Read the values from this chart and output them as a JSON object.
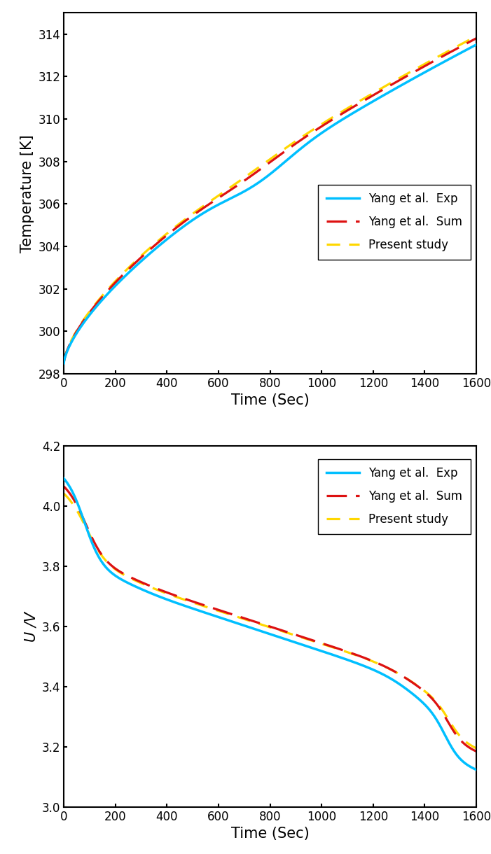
{
  "fig_width": 7.01,
  "fig_height": 12.2,
  "dpi": 100,
  "plot1": {
    "xlabel": "Time (Sec)",
    "ylabel": "Temperature [K]",
    "xlim": [
      0,
      1600
    ],
    "ylim": [
      298,
      315
    ],
    "xticks": [
      0,
      200,
      400,
      600,
      800,
      1000,
      1200,
      1400,
      1600
    ],
    "yticks": [
      298,
      300,
      302,
      304,
      306,
      308,
      310,
      312,
      314
    ]
  },
  "plot2": {
    "xlabel": "Time (Sec)",
    "ylabel": "U /V",
    "xlim": [
      0,
      1600
    ],
    "ylim": [
      3.0,
      4.2
    ],
    "xticks": [
      0,
      200,
      400,
      600,
      800,
      1000,
      1200,
      1400,
      1600
    ],
    "yticks": [
      3.0,
      3.2,
      3.4,
      3.6,
      3.8,
      4.0,
      4.2
    ]
  },
  "color_exp": "#00BFFF",
  "color_sum": "#DD1111",
  "color_present": "#FFD700",
  "lw_exp": 2.5,
  "lw_dashed": 2.3,
  "dashes_sum": [
    9,
    4
  ],
  "dashes_present": [
    6,
    4
  ],
  "label_exp": "Yang et al.  Exp",
  "label_sum": "Yang et al.  Sum",
  "label_present": "Present study",
  "axis_linewidth": 1.5,
  "tick_fontsize": 12,
  "label_fontsize": 15,
  "legend_fontsize": 12
}
